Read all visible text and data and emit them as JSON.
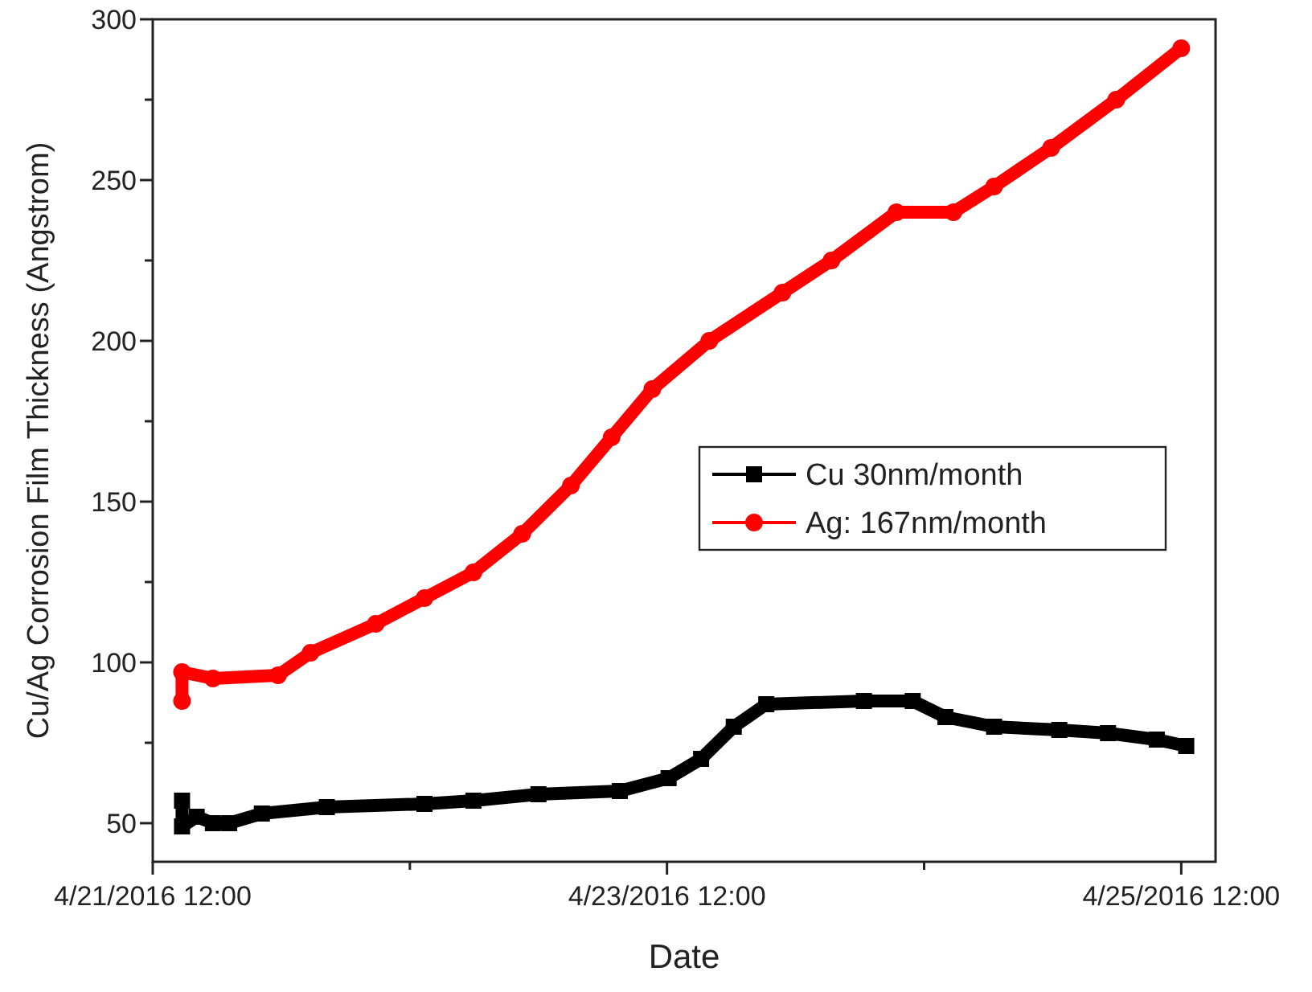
{
  "chart_data": {
    "type": "line",
    "xlabel": "Date",
    "ylabel": "Cu/Ag Corrosion Film Thickness (Angstrom)",
    "xlim": [
      "2016-04-21T12:00",
      "2016-04-25T15:12"
    ],
    "xticks": [
      {
        "value": "2016-04-21T12:00",
        "label": "4/21/2016 12:00"
      },
      {
        "value": "2016-04-22T12:00",
        "label": null
      },
      {
        "value": "2016-04-23T12:00",
        "label": "4/23/2016 12:00"
      },
      {
        "value": "2016-04-24T12:00",
        "label": null
      },
      {
        "value": "2016-04-25T12:00",
        "label": "4/25/2016 12:00"
      }
    ],
    "ylim": [
      38,
      300
    ],
    "yticks": [
      50,
      {
        "value": 75,
        "label": null
      },
      100,
      {
        "value": 125,
        "label": null
      },
      150,
      {
        "value": 175,
        "label": null
      },
      200,
      {
        "value": 225,
        "label": null
      },
      250,
      {
        "value": 275,
        "label": null
      },
      300
    ],
    "legend": "right",
    "grid": false,
    "series": [
      {
        "name": "Cu 30nm/month",
        "color": "#000000",
        "marker": "square",
        "x": [
          "2016-04-21T14:44",
          "2016-04-21T14:44",
          "2016-04-21T16:06",
          "2016-04-21T17:37",
          "2016-04-21T19:08",
          "2016-04-21T22:11",
          "2016-04-22T04:15",
          "2016-04-22T13:22",
          "2016-04-22T17:56",
          "2016-04-23T00:00",
          "2016-04-23T07:36",
          "2016-04-23T12:09",
          "2016-04-23T15:11",
          "2016-04-23T18:14",
          "2016-04-23T21:16",
          "2016-04-24T06:23",
          "2016-04-24T10:56",
          "2016-04-24T13:59",
          "2016-04-24T18:32",
          "2016-04-25T00:37",
          "2016-04-25T05:10",
          "2016-04-25T09:43",
          "2016-04-25T12:28"
        ],
        "values": [
          57,
          49,
          52,
          50,
          50,
          53,
          55,
          56,
          57,
          59,
          60,
          64,
          70,
          80,
          87,
          88,
          88,
          83,
          80,
          79,
          78,
          76,
          74
        ]
      },
      {
        "name": "Ag: 167nm/month",
        "color": "#ff0000",
        "marker": "circle",
        "x": [
          "2016-04-21T14:44",
          "2016-04-21T14:44",
          "2016-04-21T17:37",
          "2016-04-21T23:42",
          "2016-04-22T02:44",
          "2016-04-22T08:49",
          "2016-04-22T13:22",
          "2016-04-22T17:56",
          "2016-04-22T22:29",
          "2016-04-23T03:02",
          "2016-04-23T06:50",
          "2016-04-23T10:38",
          "2016-04-23T15:57",
          "2016-04-23T22:47",
          "2016-04-24T03:21",
          "2016-04-24T09:25",
          "2016-04-24T14:44",
          "2016-04-24T18:32",
          "2016-04-24T23:51",
          "2016-04-25T05:56",
          "2016-04-25T12:00"
        ],
        "values": [
          88,
          97,
          95,
          96,
          103,
          112,
          120,
          128,
          140,
          155,
          170,
          185,
          200,
          215,
          225,
          240,
          240,
          248,
          260,
          275,
          291
        ]
      }
    ]
  }
}
